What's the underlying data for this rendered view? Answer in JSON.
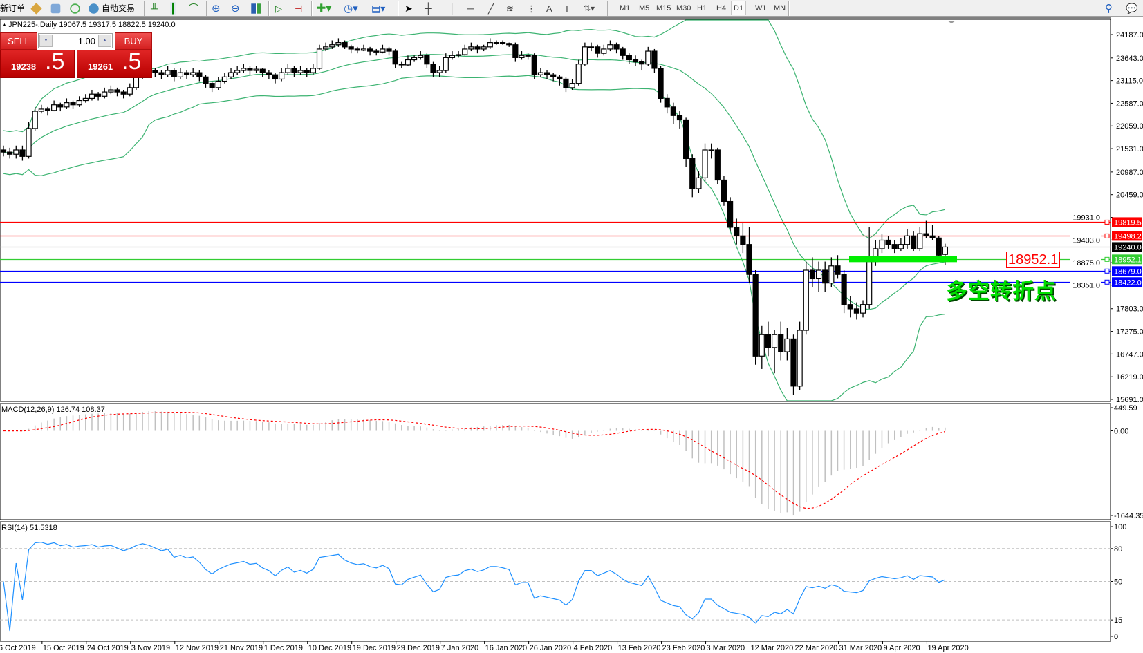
{
  "toolbar": {
    "new_order_label": "新订单",
    "auto_trading_label": "自动交易",
    "icons": [
      "navigator-icon",
      "terminal-icon",
      "signals-icon",
      "auto-trading-icon",
      "bar-chart-icon",
      "candlestick-icon",
      "line-chart-icon",
      "zoom-in-icon",
      "zoom-out-icon",
      "tile-windows-icon",
      "auto-scroll-icon",
      "chart-shift-icon",
      "indicators-icon",
      "periods-icon",
      "templates-icon",
      "cursor-icon",
      "crosshair-icon",
      "vertical-line-icon",
      "horizontal-line-icon",
      "trendline-icon",
      "fibonacci-icon",
      "fibo-channel-icon",
      "text-icon",
      "text-label-icon",
      "arrows-icon",
      "search-icon",
      "chat-icon"
    ],
    "timeframes": [
      "M1",
      "M5",
      "M15",
      "M30",
      "H1",
      "H4",
      "D1",
      "W1",
      "MN"
    ],
    "active_timeframe": "D1"
  },
  "trade_panel": {
    "sell_label": "SELL",
    "buy_label": "BUY",
    "lot": "1.00",
    "sell_price_main": "19238",
    "sell_price_frac": ".5",
    "buy_price_main": "19261",
    "buy_price_frac": ".5"
  },
  "chart_header": "JPN225-,Daily  19067.5 19317.5 18822.5 19240.0",
  "annotation": {
    "level_label": "18952.1",
    "note": "多空转折点",
    "note_color": "#00e000"
  },
  "chart_data": {
    "type": "candlestick",
    "symbol": "JPN225-",
    "timeframe": "Daily",
    "price_ticks": [
      "24187.0",
      "23643.0",
      "23115.0",
      "22587.0",
      "22059.0",
      "21531.0",
      "20987.0",
      "20459.0",
      "19931.0",
      "19403.0",
      "18875.0",
      "18351.0",
      "17803.0",
      "17275.0",
      "16747.0",
      "16219.0",
      "15691.0"
    ],
    "ylim": [
      15691.0,
      24187.0
    ],
    "x_tick_labels": [
      "6 Oct 2019",
      "15 Oct 2019",
      "24 Oct 2019",
      "3 Nov 2019",
      "12 Nov 2019",
      "21 Nov 2019",
      "1 Dec 2019",
      "10 Dec 2019",
      "19 Dec 2019",
      "29 Dec 2019",
      "7 Jan 2020",
      "16 Jan 2020",
      "26 Jan 2020",
      "4 Feb 2020",
      "13 Feb 2020",
      "23 Feb 2020",
      "3 Mar 2020",
      "12 Mar 2020",
      "22 Mar 2020",
      "31 Mar 2020",
      "9 Apr 2020",
      "19 Apr 2020"
    ],
    "colors": {
      "up_fill": "#ffffff",
      "down_fill": "#000000",
      "bands": "#3cb371",
      "macd_hist": "#c0c0c0",
      "macd_signal": "#ff0000",
      "rsi": "#1e90ff"
    },
    "horizontal_lines": [
      {
        "price": 19819.5,
        "label": "19819.5",
        "color": "#ff0000"
      },
      {
        "price": 19498.2,
        "label": "19498.2",
        "color": "#ff0000"
      },
      {
        "price": 19240.0,
        "label": "19240.0",
        "color": "#000000",
        "line_color": "#c0c0c0"
      },
      {
        "price": 18952.1,
        "label": "18952.1",
        "color": "#32cd32"
      },
      {
        "price": 18679.0,
        "label": "18679.0",
        "color": "#0000ff"
      },
      {
        "price": 18422.0,
        "label": "18422.0",
        "color": "#0000ff"
      }
    ],
    "highlight_zone": {
      "price": 18952.1,
      "color": "#00ee00"
    },
    "indicators": {
      "bollinger": {
        "period": 20,
        "deviation": 2
      },
      "macd": {
        "label": "MACD(12,26,9) 126.74 108.37",
        "ylim": [
          -1644.35,
          449.59
        ],
        "ticks": [
          "449.59",
          "0.00",
          "-1644.35"
        ]
      },
      "rsi": {
        "label": "RSI(14) 51.5318",
        "levels": [
          80,
          50,
          15
        ],
        "ticks": [
          "100",
          "80",
          "50",
          "15",
          "0"
        ]
      }
    },
    "ohlc": [
      [
        21500,
        21600,
        21350,
        21450
      ],
      [
        21450,
        21550,
        21300,
        21400
      ],
      [
        21400,
        21600,
        21300,
        21500
      ],
      [
        21500,
        21600,
        21250,
        21350
      ],
      [
        21350,
        22150,
        21300,
        22000
      ],
      [
        22000,
        22500,
        21950,
        22400
      ],
      [
        22400,
        22550,
        22350,
        22450
      ],
      [
        22450,
        22500,
        22300,
        22420
      ],
      [
        22420,
        22650,
        22400,
        22550
      ],
      [
        22550,
        22600,
        22400,
        22500
      ],
      [
        22500,
        22700,
        22450,
        22600
      ],
      [
        22600,
        22650,
        22450,
        22550
      ],
      [
        22550,
        22750,
        22500,
        22650
      ],
      [
        22650,
        22800,
        22600,
        22700
      ],
      [
        22700,
        22900,
        22650,
        22800
      ],
      [
        22800,
        22850,
        22650,
        22750
      ],
      [
        22750,
        22950,
        22700,
        22850
      ],
      [
        22850,
        23000,
        22800,
        22900
      ],
      [
        22900,
        22950,
        22750,
        22850
      ],
      [
        22850,
        22900,
        22700,
        22800
      ],
      [
        22800,
        23050,
        22750,
        22950
      ],
      [
        22950,
        23300,
        22900,
        23200
      ],
      [
        23200,
        23450,
        23150,
        23380
      ],
      [
        23380,
        23450,
        23250,
        23350
      ],
      [
        23350,
        23400,
        23200,
        23300
      ],
      [
        23300,
        23350,
        23150,
        23250
      ],
      [
        23250,
        23450,
        23200,
        23350
      ],
      [
        23350,
        23400,
        23100,
        23200
      ],
      [
        23200,
        23400,
        23150,
        23300
      ],
      [
        23300,
        23350,
        23150,
        23250
      ],
      [
        23250,
        23400,
        23200,
        23300
      ],
      [
        23300,
        23350,
        23100,
        23200
      ],
      [
        23200,
        23250,
        22950,
        23050
      ],
      [
        23050,
        23100,
        22850,
        22950
      ],
      [
        22950,
        23200,
        22900,
        23100
      ],
      [
        23100,
        23300,
        23050,
        23200
      ],
      [
        23200,
        23400,
        23150,
        23300
      ],
      [
        23300,
        23450,
        23250,
        23350
      ],
      [
        23350,
        23500,
        23300,
        23400
      ],
      [
        23400,
        23450,
        23250,
        23350
      ],
      [
        23350,
        23450,
        23300,
        23380
      ],
      [
        23380,
        23400,
        23200,
        23300
      ],
      [
        23300,
        23350,
        23150,
        23250
      ],
      [
        23250,
        23300,
        23050,
        23150
      ],
      [
        23150,
        23400,
        23100,
        23300
      ],
      [
        23300,
        23500,
        23250,
        23400
      ],
      [
        23400,
        23450,
        23200,
        23300
      ],
      [
        23300,
        23450,
        23250,
        23350
      ],
      [
        23350,
        23400,
        23200,
        23300
      ],
      [
        23300,
        23500,
        23250,
        23400
      ],
      [
        23400,
        23950,
        23350,
        23850
      ],
      [
        23850,
        24000,
        23800,
        23900
      ],
      [
        23900,
        24050,
        23850,
        23950
      ],
      [
        23950,
        24100,
        23900,
        24000
      ],
      [
        24000,
        24050,
        23850,
        23900
      ],
      [
        23900,
        23950,
        23750,
        23850
      ],
      [
        23850,
        23900,
        23750,
        23820
      ],
      [
        23820,
        23950,
        23800,
        23850
      ],
      [
        23850,
        23900,
        23700,
        23800
      ],
      [
        23800,
        23850,
        23700,
        23780
      ],
      [
        23780,
        23950,
        23750,
        23850
      ],
      [
        23850,
        23900,
        23700,
        23800
      ],
      [
        23800,
        23850,
        23400,
        23500
      ],
      [
        23500,
        23550,
        23400,
        23480
      ],
      [
        23480,
        23700,
        23450,
        23600
      ],
      [
        23600,
        23700,
        23550,
        23650
      ],
      [
        23650,
        23800,
        23600,
        23700
      ],
      [
        23700,
        23750,
        23400,
        23500
      ],
      [
        23500,
        23550,
        23200,
        23300
      ],
      [
        23300,
        23450,
        23200,
        23350
      ],
      [
        23350,
        23750,
        23300,
        23650
      ],
      [
        23650,
        23800,
        23600,
        23700
      ],
      [
        23700,
        23800,
        23650,
        23720
      ],
      [
        23720,
        23950,
        23700,
        23850
      ],
      [
        23850,
        24000,
        23800,
        23900
      ],
      [
        23900,
        23950,
        23750,
        23850
      ],
      [
        23850,
        23950,
        23800,
        23900
      ],
      [
        23900,
        24100,
        23850,
        24000
      ],
      [
        24000,
        24050,
        23950,
        24000
      ],
      [
        24000,
        24050,
        23950,
        23980
      ],
      [
        23980,
        24000,
        23900,
        23950
      ],
      [
        23950,
        24000,
        23550,
        23650
      ],
      [
        23650,
        23800,
        23600,
        23700
      ],
      [
        23700,
        23750,
        23600,
        23700
      ],
      [
        23700,
        23750,
        23150,
        23250
      ],
      [
        23250,
        23400,
        23200,
        23300
      ],
      [
        23300,
        23350,
        23150,
        23250
      ],
      [
        23250,
        23300,
        23100,
        23200
      ],
      [
        23200,
        23250,
        23000,
        23150
      ],
      [
        23150,
        23200,
        22850,
        22950
      ],
      [
        22950,
        23150,
        22900,
        23050
      ],
      [
        23050,
        23600,
        23000,
        23500
      ],
      [
        23500,
        24000,
        23450,
        23900
      ],
      [
        23900,
        24000,
        23800,
        23900
      ],
      [
        23900,
        23950,
        23650,
        23750
      ],
      [
        23750,
        23950,
        23700,
        23850
      ],
      [
        23850,
        24050,
        23800,
        23950
      ],
      [
        23950,
        24000,
        23750,
        23850
      ],
      [
        23850,
        23900,
        23600,
        23700
      ],
      [
        23700,
        23750,
        23500,
        23600
      ],
      [
        23600,
        23700,
        23450,
        23550
      ],
      [
        23550,
        23600,
        23350,
        23500
      ],
      [
        23500,
        23900,
        23450,
        23800
      ],
      [
        23800,
        23850,
        23300,
        23400
      ],
      [
        23400,
        23450,
        22600,
        22700
      ],
      [
        22700,
        22800,
        22350,
        22500
      ],
      [
        22500,
        22600,
        22100,
        22300
      ],
      [
        22300,
        22400,
        22000,
        22200
      ],
      [
        22200,
        22250,
        21100,
        21300
      ],
      [
        21300,
        21400,
        20400,
        20600
      ],
      [
        20600,
        21000,
        20500,
        20850
      ],
      [
        20850,
        21650,
        20750,
        21500
      ],
      [
        21500,
        21650,
        21300,
        21500
      ],
      [
        21500,
        21550,
        20700,
        20800
      ],
      [
        20800,
        20900,
        20200,
        20300
      ],
      [
        20300,
        20400,
        19600,
        19700
      ],
      [
        19700,
        19900,
        19300,
        19500
      ],
      [
        19500,
        19800,
        19100,
        19300
      ],
      [
        19300,
        19700,
        18400,
        18600
      ],
      [
        18600,
        18700,
        16500,
        16700
      ],
      [
        16700,
        17400,
        16400,
        17200
      ],
      [
        17200,
        17500,
        16700,
        16900
      ],
      [
        16900,
        17300,
        16300,
        17200
      ],
      [
        17200,
        17500,
        16600,
        16800
      ],
      [
        16800,
        17350,
        16600,
        17100
      ],
      [
        17100,
        17200,
        15800,
        16000
      ],
      [
        16000,
        17500,
        15900,
        17300
      ],
      [
        17300,
        18900,
        17200,
        18700
      ],
      [
        18700,
        19000,
        18300,
        18500
      ],
      [
        18500,
        18900,
        18200,
        18700
      ],
      [
        18700,
        18900,
        18200,
        18400
      ],
      [
        18400,
        19000,
        18300,
        18800
      ],
      [
        18800,
        19050,
        18500,
        18600
      ],
      [
        18600,
        18700,
        17700,
        17900
      ],
      [
        17900,
        18100,
        17600,
        17800
      ],
      [
        17800,
        17950,
        17550,
        17700
      ],
      [
        17700,
        18000,
        17600,
        17900
      ],
      [
        17900,
        19700,
        17800,
        18900
      ],
      [
        18900,
        19400,
        18800,
        19200
      ],
      [
        19200,
        19550,
        19100,
        19400
      ],
      [
        19400,
        19500,
        19200,
        19300
      ],
      [
        19300,
        19400,
        19100,
        19200
      ],
      [
        19200,
        19450,
        19150,
        19300
      ],
      [
        19300,
        19650,
        19200,
        19500
      ],
      [
        19500,
        19600,
        19150,
        19200
      ],
      [
        19200,
        19700,
        19150,
        19550
      ],
      [
        19550,
        19850,
        19450,
        19500
      ],
      [
        19500,
        19750,
        19400,
        19450
      ],
      [
        19450,
        19500,
        18950,
        19050
      ],
      [
        19067.5,
        19317.5,
        18822.5,
        19240.0
      ]
    ]
  }
}
